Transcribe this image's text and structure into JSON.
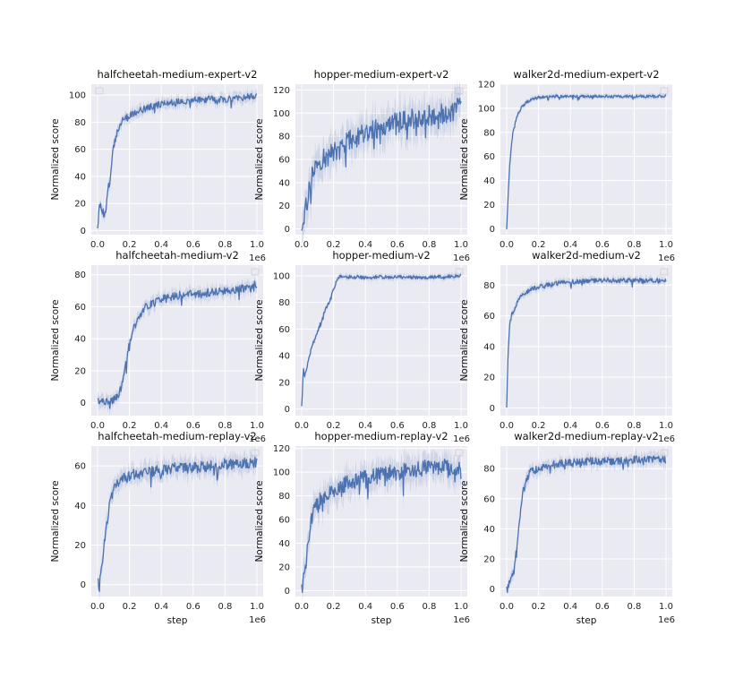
{
  "figure": {
    "colors": {
      "background": "#eaeaf2",
      "grid": "#ffffff",
      "line": "#4c72b0",
      "band": "#4c72b0"
    },
    "x_scale_label": "1e6"
  },
  "chart_data": [
    {
      "type": "line",
      "title": "halfcheetah-medium-expert-v2",
      "xlabel": "",
      "ylabel": "Normalized score",
      "xlim": [
        0,
        1.0
      ],
      "ylim": [
        -3,
        108
      ],
      "xticks": [
        0.0,
        0.2,
        0.4,
        0.6,
        0.8,
        1.0
      ],
      "yticks": [
        0,
        20,
        40,
        60,
        80,
        100
      ],
      "legend": "top-left (empty)",
      "grid": true,
      "noise": 2.5,
      "x": [
        0,
        0.01,
        0.02,
        0.03,
        0.04,
        0.05,
        0.06,
        0.07,
        0.08,
        0.1,
        0.12,
        0.14,
        0.16,
        0.18,
        0.2,
        0.25,
        0.3,
        0.35,
        0.4,
        0.5,
        0.6,
        0.7,
        0.8,
        0.9,
        1.0
      ],
      "y": [
        3,
        18,
        19,
        15,
        12,
        12,
        28,
        33,
        38,
        62,
        72,
        78,
        82,
        83,
        85,
        88,
        90,
        92,
        93,
        95,
        96,
        97,
        97,
        98,
        99
      ]
    },
    {
      "type": "line",
      "title": "hopper-medium-expert-v2",
      "xlabel": "",
      "ylabel": "Normalized score",
      "xlim": [
        0,
        1.0
      ],
      "ylim": [
        -5,
        125
      ],
      "xticks": [
        0.0,
        0.2,
        0.4,
        0.6,
        0.8,
        1.0
      ],
      "yticks": [
        0,
        20,
        40,
        60,
        80,
        100,
        120
      ],
      "legend": "top-right (empty)",
      "grid": true,
      "noise": 9,
      "x": [
        0,
        0.02,
        0.04,
        0.06,
        0.08,
        0.1,
        0.15,
        0.2,
        0.25,
        0.3,
        0.35,
        0.4,
        0.5,
        0.6,
        0.7,
        0.8,
        0.9,
        1.0
      ],
      "y": [
        2,
        15,
        28,
        42,
        52,
        58,
        62,
        65,
        72,
        76,
        80,
        84,
        88,
        92,
        95,
        98,
        100,
        105
      ]
    },
    {
      "type": "line",
      "title": "walker2d-medium-expert-v2",
      "xlabel": "",
      "ylabel": "Normalized score",
      "xlim": [
        0,
        1.0
      ],
      "ylim": [
        -5,
        120
      ],
      "xticks": [
        0.0,
        0.2,
        0.4,
        0.6,
        0.8,
        1.0
      ],
      "yticks": [
        0,
        20,
        40,
        60,
        80,
        100,
        120
      ],
      "legend": "top-right (empty)",
      "grid": true,
      "noise": 1.2,
      "x": [
        0,
        0.01,
        0.02,
        0.03,
        0.04,
        0.05,
        0.06,
        0.08,
        0.1,
        0.12,
        0.15,
        0.2,
        0.3,
        0.4,
        0.6,
        0.8,
        1.0
      ],
      "y": [
        0,
        30,
        55,
        70,
        80,
        85,
        92,
        98,
        102,
        105,
        107,
        109,
        110,
        110,
        110,
        110,
        110
      ]
    },
    {
      "type": "line",
      "title": "halfcheetah-medium-v2",
      "xlabel": "",
      "ylabel": "Normalized score",
      "xlim": [
        0,
        1.0
      ],
      "ylim": [
        -8,
        86
      ],
      "xticks": [
        0.0,
        0.2,
        0.4,
        0.6,
        0.8,
        1.0
      ],
      "yticks": [
        0,
        20,
        40,
        60,
        80
      ],
      "legend": "top-right (empty)",
      "grid": true,
      "noise": 2.5,
      "x": [
        0,
        0.02,
        0.05,
        0.1,
        0.13,
        0.15,
        0.18,
        0.2,
        0.22,
        0.25,
        0.28,
        0.3,
        0.35,
        0.4,
        0.5,
        0.6,
        0.7,
        0.8,
        0.9,
        1.0
      ],
      "y": [
        3,
        0,
        0,
        2,
        5,
        12,
        25,
        38,
        45,
        52,
        56,
        60,
        63,
        65,
        67,
        68,
        69,
        70,
        71,
        74
      ]
    },
    {
      "type": "line",
      "title": "hopper-medium-v2",
      "xlabel": "",
      "ylabel": "Normalized score",
      "xlim": [
        0,
        1.0
      ],
      "ylim": [
        -5,
        108
      ],
      "xticks": [
        0.0,
        0.2,
        0.4,
        0.6,
        0.8,
        1.0
      ],
      "yticks": [
        0,
        20,
        40,
        60,
        80,
        100
      ],
      "legend": "top-right (empty)",
      "grid": true,
      "noise": 1.3,
      "x": [
        0,
        0.01,
        0.02,
        0.04,
        0.06,
        0.08,
        0.1,
        0.12,
        0.15,
        0.18,
        0.2,
        0.22,
        0.24,
        0.3,
        0.4,
        0.6,
        0.8,
        1.0
      ],
      "y": [
        2,
        30,
        25,
        35,
        45,
        52,
        58,
        65,
        75,
        82,
        90,
        97,
        100,
        99,
        99,
        99,
        99,
        100
      ]
    },
    {
      "type": "line",
      "title": "walker2d-medium-v2",
      "xlabel": "",
      "ylabel": "Normalized score",
      "xlim": [
        0,
        1.0
      ],
      "ylim": [
        -5,
        93
      ],
      "xticks": [
        0.0,
        0.2,
        0.4,
        0.6,
        0.8,
        1.0
      ],
      "yticks": [
        0,
        20,
        40,
        60,
        80
      ],
      "legend": "top-right (empty)",
      "grid": true,
      "noise": 1.5,
      "x": [
        0,
        0.01,
        0.02,
        0.03,
        0.05,
        0.07,
        0.1,
        0.15,
        0.2,
        0.3,
        0.4,
        0.6,
        0.8,
        1.0
      ],
      "y": [
        0,
        40,
        55,
        60,
        65,
        70,
        74,
        77,
        79,
        81,
        82,
        83,
        83,
        83
      ]
    },
    {
      "type": "line",
      "title": "halfcheetah-medium-replay-v2",
      "xlabel": "step",
      "ylabel": "Normalized score",
      "xlim": [
        0,
        1.0
      ],
      "ylim": [
        -6,
        70
      ],
      "xticks": [
        0.0,
        0.2,
        0.4,
        0.6,
        0.8,
        1.0
      ],
      "yticks": [
        0,
        20,
        40,
        60
      ],
      "legend": "top-right (empty)",
      "grid": true,
      "noise": 2.8,
      "x": [
        0,
        0.01,
        0.02,
        0.03,
        0.05,
        0.07,
        0.1,
        0.12,
        0.15,
        0.2,
        0.25,
        0.3,
        0.4,
        0.5,
        0.6,
        0.7,
        0.8,
        0.9,
        1.0
      ],
      "y": [
        2,
        -2,
        5,
        12,
        25,
        38,
        48,
        52,
        53,
        55,
        56,
        57,
        58,
        59,
        59,
        60,
        61,
        61,
        62
      ]
    },
    {
      "type": "line",
      "title": "hopper-medium-replay-v2",
      "xlabel": "step",
      "ylabel": "Normalized score",
      "xlim": [
        0,
        1.0
      ],
      "ylim": [
        -5,
        122
      ],
      "xticks": [
        0.0,
        0.2,
        0.4,
        0.6,
        0.8,
        1.0
      ],
      "yticks": [
        0,
        20,
        40,
        60,
        80,
        100,
        120
      ],
      "legend": "top-right (empty)",
      "grid": true,
      "noise": 7,
      "x": [
        0,
        0.02,
        0.04,
        0.06,
        0.08,
        0.1,
        0.15,
        0.2,
        0.25,
        0.3,
        0.4,
        0.5,
        0.6,
        0.7,
        0.8,
        0.9,
        1.0
      ],
      "y": [
        2,
        15,
        40,
        60,
        70,
        75,
        80,
        85,
        88,
        92,
        95,
        98,
        100,
        102,
        104,
        104,
        104
      ]
    },
    {
      "type": "line",
      "title": "walker2d-medium-replay-v2",
      "xlabel": "step",
      "ylabel": "Normalized score",
      "xlim": [
        0,
        1.0
      ],
      "ylim": [
        -5,
        95
      ],
      "xticks": [
        0.0,
        0.2,
        0.4,
        0.6,
        0.8,
        1.0
      ],
      "yticks": [
        0,
        20,
        40,
        60,
        80
      ],
      "legend": "top-right (empty)",
      "grid": true,
      "noise": 2.5,
      "x": [
        0,
        0.02,
        0.04,
        0.06,
        0.08,
        0.1,
        0.12,
        0.15,
        0.2,
        0.25,
        0.3,
        0.4,
        0.5,
        0.6,
        0.7,
        0.8,
        0.9,
        1.0
      ],
      "y": [
        0,
        5,
        10,
        25,
        45,
        65,
        72,
        78,
        80,
        82,
        83,
        84,
        85,
        85,
        85,
        86,
        86,
        86
      ]
    }
  ]
}
